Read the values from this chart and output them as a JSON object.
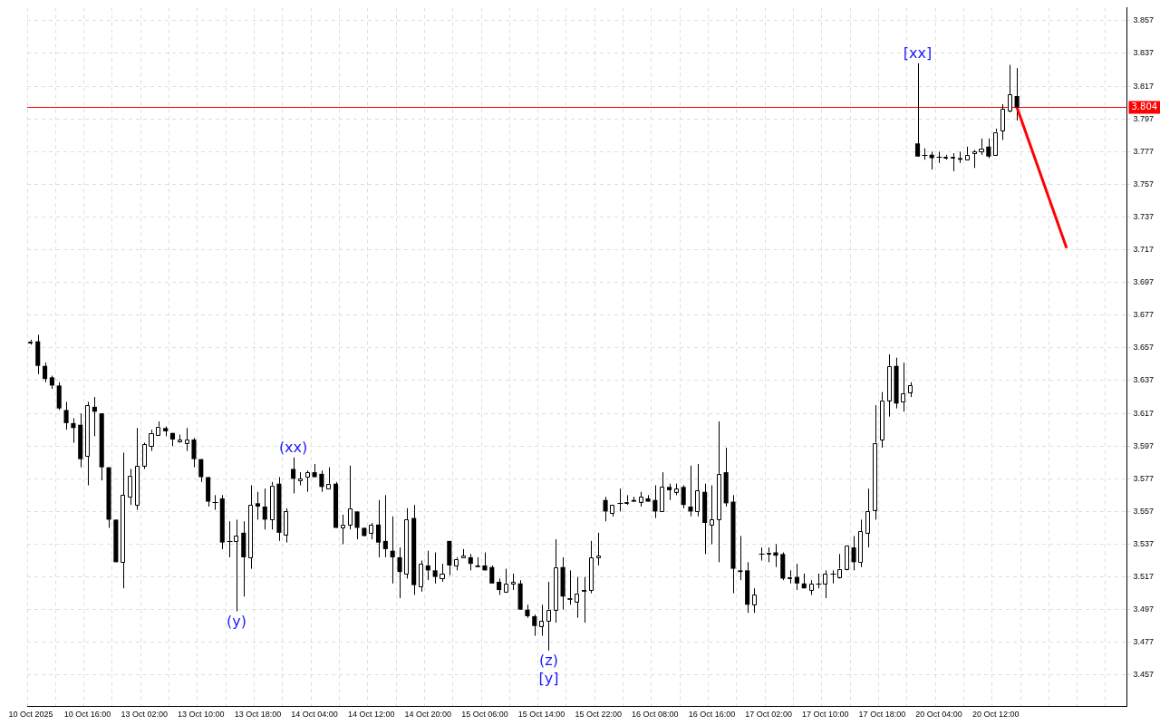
{
  "chart_data": {
    "type": "candlestick",
    "categories": [
      "10 Oct 2025",
      null,
      null,
      null,
      null,
      null,
      null,
      null,
      "10 Oct 16:00",
      null,
      null,
      null,
      null,
      null,
      null,
      null,
      "13 Oct 02:00",
      null,
      null,
      null,
      null,
      null,
      null,
      null,
      "13 Oct 10:00",
      null,
      null,
      null,
      null,
      null,
      null,
      null,
      "13 Oct 18:00",
      null,
      null,
      null,
      null,
      null,
      null,
      null,
      "14 Oct 04:00",
      null,
      null,
      null,
      null,
      null,
      null,
      null,
      "14 Oct 12:00",
      null,
      null,
      null,
      null,
      null,
      null,
      null,
      "14 Oct 20:00",
      null,
      null,
      null,
      null,
      null,
      null,
      null,
      "15 Oct 06:00",
      null,
      null,
      null,
      null,
      null,
      null,
      null,
      "15 Oct 14:00",
      null,
      null,
      null,
      null,
      null,
      null,
      null,
      "15 Oct 22:00",
      null,
      null,
      null,
      null,
      null,
      null,
      null,
      "16 Oct 08:00",
      null,
      null,
      null,
      null,
      null,
      null,
      null,
      "16 Oct 16:00",
      null,
      null,
      null,
      null,
      null,
      null,
      null,
      "17 Oct 02:00",
      null,
      null,
      null,
      null,
      null,
      null,
      null,
      "17 Oct 10:00",
      null,
      null,
      null,
      null,
      null,
      null,
      null,
      "17 Oct 18:00",
      null,
      null,
      null,
      null,
      null,
      null,
      null,
      "20 Oct 04:00",
      null,
      null,
      null,
      null,
      null,
      null,
      null,
      "20 Oct 12:00",
      null,
      null,
      null,
      null,
      null,
      null,
      null,
      null,
      null,
      null,
      null,
      null,
      null,
      null,
      null,
      null,
      null,
      null
    ],
    "ohlc": [
      [
        3.66,
        3.662,
        3.659,
        3.661
      ],
      [
        3.661,
        3.665,
        3.641,
        3.646
      ],
      [
        3.646,
        3.648,
        3.636,
        3.638
      ],
      [
        3.639,
        3.64,
        3.632,
        3.634
      ],
      [
        3.634,
        3.636,
        3.619,
        3.62
      ],
      [
        3.619,
        3.624,
        3.607,
        3.611
      ],
      [
        3.611,
        3.614,
        3.599,
        3.608
      ],
      [
        3.61,
        3.617,
        3.584,
        3.589
      ],
      [
        3.591,
        3.624,
        3.573,
        3.622
      ],
      [
        3.621,
        3.627,
        3.603,
        3.618
      ],
      [
        3.617,
        3.617,
        3.576,
        3.584
      ],
      [
        3.584,
        3.584,
        3.547,
        3.552
      ],
      [
        3.552,
        3.552,
        3.526,
        3.526
      ],
      [
        3.526,
        3.593,
        3.51,
        3.567
      ],
      [
        3.566,
        3.583,
        3.561,
        3.579
      ],
      [
        3.561,
        3.608,
        3.558,
        3.585
      ],
      [
        3.585,
        3.599,
        3.583,
        3.598
      ],
      [
        3.597,
        3.607,
        3.594,
        3.605
      ],
      [
        3.604,
        3.612,
        3.604,
        3.609
      ],
      [
        3.608,
        3.609,
        3.603,
        3.606
      ],
      [
        3.605,
        3.605,
        3.597,
        3.601
      ],
      [
        3.6,
        3.604,
        3.599,
        3.601
      ],
      [
        3.599,
        3.608,
        3.594,
        3.601
      ],
      [
        3.601,
        3.602,
        3.584,
        3.589
      ],
      [
        3.589,
        3.589,
        3.575,
        3.578
      ],
      [
        3.578,
        3.578,
        3.56,
        3.563
      ],
      [
        3.563,
        3.567,
        3.558,
        3.563
      ],
      [
        3.565,
        3.567,
        3.534,
        3.538
      ],
      [
        3.539,
        3.551,
        3.529,
        3.539
      ],
      [
        3.539,
        3.552,
        3.496,
        3.542
      ],
      [
        3.544,
        3.551,
        3.505,
        3.529
      ],
      [
        3.529,
        3.573,
        3.522,
        3.561
      ],
      [
        3.562,
        3.569,
        3.552,
        3.56
      ],
      [
        3.56,
        3.571,
        3.546,
        3.552
      ],
      [
        3.552,
        3.575,
        3.546,
        3.573
      ],
      [
        3.574,
        3.578,
        3.539,
        3.544
      ],
      [
        3.543,
        3.559,
        3.538,
        3.557
      ],
      [
        3.583,
        3.59,
        3.568,
        3.577
      ],
      [
        3.576,
        3.581,
        3.573,
        3.577
      ],
      [
        3.578,
        3.582,
        3.569,
        3.581
      ],
      [
        3.581,
        3.586,
        3.578,
        3.578
      ],
      [
        3.58,
        3.582,
        3.569,
        3.572
      ],
      [
        3.571,
        3.584,
        3.571,
        3.574
      ],
      [
        3.574,
        3.575,
        3.547,
        3.547
      ],
      [
        3.547,
        3.555,
        3.537,
        3.549
      ],
      [
        3.549,
        3.585,
        3.546,
        3.559
      ],
      [
        3.557,
        3.557,
        3.54,
        3.547
      ],
      [
        3.547,
        3.547,
        3.542,
        3.542
      ],
      [
        3.544,
        3.55,
        3.54,
        3.549
      ],
      [
        3.549,
        3.564,
        3.529,
        3.538
      ],
      [
        3.539,
        3.567,
        3.529,
        3.534
      ],
      [
        3.533,
        3.554,
        3.513,
        3.529
      ],
      [
        3.529,
        3.535,
        3.504,
        3.52
      ],
      [
        3.519,
        3.559,
        3.516,
        3.552
      ],
      [
        3.553,
        3.561,
        3.506,
        3.512
      ],
      [
        3.511,
        3.527,
        3.508,
        3.525
      ],
      [
        3.524,
        3.533,
        3.515,
        3.521
      ],
      [
        3.521,
        3.532,
        3.513,
        3.517
      ],
      [
        3.516,
        3.525,
        3.514,
        3.519
      ],
      [
        3.539,
        3.539,
        3.518,
        3.524
      ],
      [
        3.524,
        3.529,
        3.521,
        3.528
      ],
      [
        3.529,
        3.534,
        3.529,
        3.53
      ],
      [
        3.529,
        3.531,
        3.521,
        3.525
      ],
      [
        3.524,
        3.529,
        3.523,
        3.523
      ],
      [
        3.524,
        3.532,
        3.521,
        3.521
      ],
      [
        3.523,
        3.524,
        3.513,
        3.513
      ],
      [
        3.514,
        3.516,
        3.506,
        3.509
      ],
      [
        3.508,
        3.522,
        3.508,
        3.513
      ],
      [
        3.513,
        3.519,
        3.509,
        3.514
      ],
      [
        3.513,
        3.515,
        3.497,
        3.497
      ],
      [
        3.497,
        3.5,
        3.492,
        3.493
      ],
      [
        3.493,
        3.494,
        3.481,
        3.487
      ],
      [
        3.487,
        3.5,
        3.481,
        3.49
      ],
      [
        3.49,
        3.514,
        3.472,
        3.497
      ],
      [
        3.497,
        3.54,
        3.489,
        3.523
      ],
      [
        3.523,
        3.529,
        3.497,
        3.505
      ],
      [
        3.504,
        3.521,
        3.5,
        3.503
      ],
      [
        3.502,
        3.517,
        3.492,
        3.507
      ],
      [
        3.509,
        3.517,
        3.489,
        3.508
      ],
      [
        3.509,
        3.539,
        3.507,
        3.529
      ],
      [
        3.529,
        3.544,
        3.524,
        3.53
      ],
      [
        3.564,
        3.566,
        3.551,
        3.557
      ],
      [
        3.556,
        3.561,
        3.554,
        3.561
      ],
      [
        3.562,
        3.571,
        3.557,
        3.562
      ],
      [
        3.562,
        3.567,
        3.561,
        3.563
      ],
      [
        3.564,
        3.566,
        3.563,
        3.563
      ],
      [
        3.563,
        3.569,
        3.56,
        3.566
      ],
      [
        3.565,
        3.567,
        3.563,
        3.563
      ],
      [
        3.564,
        3.573,
        3.553,
        3.557
      ],
      [
        3.557,
        3.581,
        3.557,
        3.572
      ],
      [
        3.572,
        3.574,
        3.564,
        3.57
      ],
      [
        3.569,
        3.574,
        3.567,
        3.571
      ],
      [
        3.572,
        3.573,
        3.559,
        3.561
      ],
      [
        3.56,
        3.585,
        3.554,
        3.557
      ],
      [
        3.557,
        3.586,
        3.554,
        3.57
      ],
      [
        3.569,
        3.574,
        3.531,
        3.55
      ],
      [
        3.549,
        3.573,
        3.537,
        3.552
      ],
      [
        3.552,
        3.612,
        3.526,
        3.58
      ],
      [
        3.581,
        3.596,
        3.56,
        3.562
      ],
      [
        3.563,
        3.567,
        3.507,
        3.522
      ],
      [
        3.521,
        3.542,
        3.515,
        3.52
      ],
      [
        3.521,
        3.526,
        3.495,
        3.5
      ],
      [
        3.5,
        3.51,
        3.495,
        3.506
      ],
      [
        3.531,
        3.535,
        3.527,
        3.531
      ],
      [
        3.531,
        3.535,
        3.526,
        3.532
      ],
      [
        3.532,
        3.537,
        3.523,
        3.53
      ],
      [
        3.531,
        3.532,
        3.515,
        3.516
      ],
      [
        3.516,
        3.521,
        3.513,
        3.517
      ],
      [
        3.517,
        3.525,
        3.509,
        3.513
      ],
      [
        3.513,
        3.519,
        3.51,
        3.51
      ],
      [
        3.509,
        3.515,
        3.506,
        3.513
      ],
      [
        3.513,
        3.519,
        3.51,
        3.513
      ],
      [
        3.513,
        3.521,
        3.504,
        3.519
      ],
      [
        3.519,
        3.521,
        3.513,
        3.519
      ],
      [
        3.517,
        3.531,
        3.516,
        3.522
      ],
      [
        3.522,
        3.536,
        3.521,
        3.536
      ],
      [
        3.535,
        3.542,
        3.521,
        3.526
      ],
      [
        3.526,
        3.552,
        3.523,
        3.545
      ],
      [
        3.544,
        3.571,
        3.535,
        3.557
      ],
      [
        3.558,
        3.622,
        3.552,
        3.599
      ],
      [
        3.601,
        3.63,
        3.596,
        3.625
      ],
      [
        3.625,
        3.653,
        3.615,
        3.646
      ],
      [
        3.646,
        3.651,
        3.62,
        3.623
      ],
      [
        3.624,
        3.648,
        3.618,
        3.629
      ],
      [
        3.63,
        3.636,
        3.627,
        3.634
      ],
      [
        3.782,
        3.831,
        3.774,
        3.774
      ],
      [
        3.775,
        3.779,
        3.772,
        3.775
      ],
      [
        3.775,
        3.777,
        3.766,
        3.773
      ],
      [
        3.774,
        3.777,
        3.77,
        3.774
      ],
      [
        3.773,
        3.775,
        3.772,
        3.774
      ],
      [
        3.773,
        3.776,
        3.765,
        3.774
      ],
      [
        3.773,
        3.777,
        3.77,
        3.772
      ],
      [
        3.772,
        3.78,
        3.772,
        3.775
      ],
      [
        3.776,
        3.778,
        3.767,
        3.777
      ],
      [
        3.777,
        3.785,
        3.775,
        3.779
      ],
      [
        3.78,
        3.785,
        3.773,
        3.774
      ],
      [
        3.775,
        3.791,
        3.775,
        3.789
      ],
      [
        3.79,
        3.806,
        3.784,
        3.803
      ],
      [
        3.802,
        3.83,
        3.801,
        3.812
      ],
      [
        3.811,
        3.828,
        3.796,
        3.804
      ],
      null,
      null,
      null,
      null,
      null,
      null,
      null,
      null,
      null,
      null,
      null,
      null,
      null,
      null,
      null
    ],
    "series": [
      {
        "type": "line",
        "color": "#ff0000",
        "values": [
          null,
          null,
          null,
          null,
          null,
          null,
          null,
          null,
          null,
          null,
          null,
          null,
          null,
          null,
          null,
          null,
          null,
          null,
          null,
          null,
          null,
          null,
          null,
          null,
          null,
          null,
          null,
          null,
          null,
          null,
          null,
          null,
          null,
          null,
          null,
          null,
          null,
          null,
          null,
          null,
          null,
          null,
          null,
          null,
          null,
          null,
          null,
          null,
          null,
          null,
          null,
          null,
          null,
          null,
          null,
          null,
          null,
          null,
          null,
          null,
          null,
          null,
          null,
          null,
          null,
          null,
          null,
          null,
          null,
          null,
          null,
          null,
          null,
          null,
          null,
          null,
          null,
          null,
          null,
          null,
          null,
          null,
          null,
          null,
          null,
          null,
          null,
          null,
          null,
          null,
          null,
          null,
          null,
          null,
          null,
          null,
          null,
          null,
          null,
          null,
          null,
          null,
          null,
          null,
          null,
          null,
          null,
          null,
          null,
          null,
          null,
          null,
          null,
          null,
          null,
          null,
          null,
          null,
          null,
          null,
          null,
          null,
          null,
          null,
          null,
          null,
          null,
          null,
          null,
          null,
          null,
          null,
          null,
          null,
          null,
          null,
          null,
          null,
          null,
          3.804,
          null,
          null,
          null,
          null,
          null,
          null,
          3.718,
          null,
          null,
          null,
          null,
          null,
          null,
          null,
          null
        ]
      }
    ],
    "ylim": [
      3.438,
      3.865
    ],
    "yticks": [
      3.457,
      3.477,
      3.497,
      3.517,
      3.537,
      3.557,
      3.577,
      3.597,
      3.617,
      3.637,
      3.657,
      3.677,
      3.697,
      3.717,
      3.737,
      3.757,
      3.777,
      3.797,
      3.817,
      3.837,
      3.857
    ],
    "grid": true,
    "legend": false,
    "ref_lines": [
      {
        "axis": "y",
        "value": 3.804,
        "label": "3.804",
        "color": "#ff0000"
      }
    ],
    "annotations": [
      {
        "text": "(y)",
        "y": 3.496
      },
      {
        "text": "(xx)",
        "y": 3.59
      },
      {
        "text": "(z)",
        "y": 3.472
      },
      {
        "text": "[y]",
        "y": 3.472
      },
      {
        "text": "[xx]",
        "y": 3.831
      }
    ]
  }
}
